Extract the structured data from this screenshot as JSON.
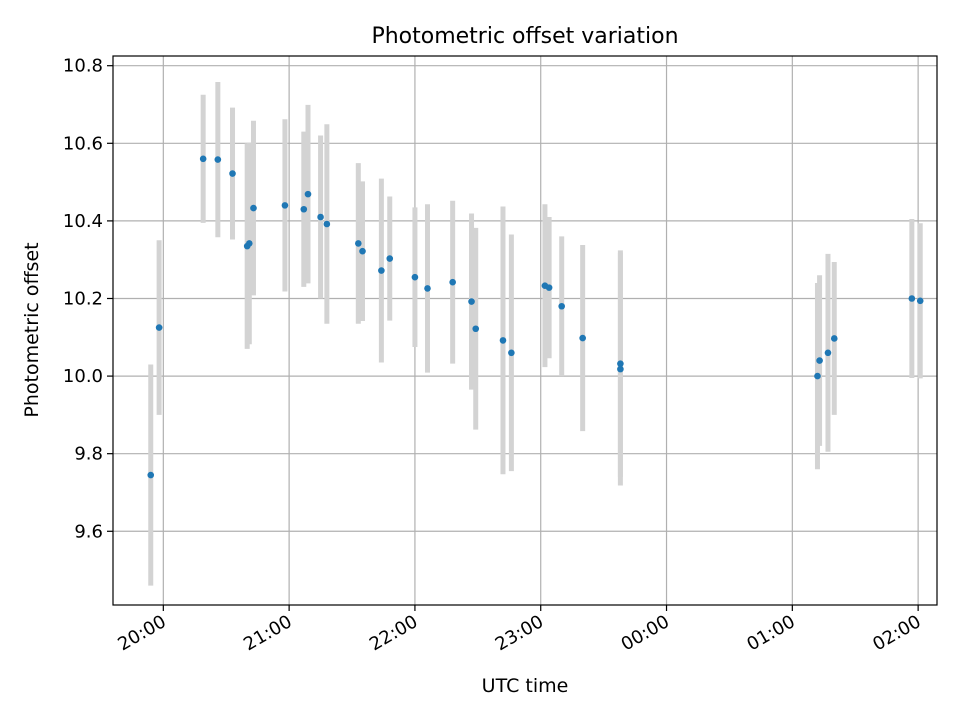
{
  "chart_data": {
    "type": "scatter",
    "title": "Photometric offset variation",
    "xlabel": "UTC time",
    "ylabel": "Photometric offset",
    "x_unit": "hours after 20:00 UTC (axis labels wrap past 24h)",
    "xlim": [
      "19:36",
      "02:09"
    ],
    "ylim": [
      9.41,
      10.825
    ],
    "x_ticks": [
      "20:00",
      "21:00",
      "22:00",
      "23:00",
      "00:00",
      "01:00",
      "02:00"
    ],
    "y_ticks": [
      "9.6",
      "9.8",
      "10.0",
      "10.2",
      "10.4",
      "10.6",
      "10.8"
    ],
    "grid": true,
    "colors": {
      "marker": "#1f77b4",
      "errorbar": "#d3d3d3",
      "grid": "#b0b0b0"
    },
    "series": [
      {
        "points": [
          {
            "x": "19:54",
            "y": 9.745,
            "err": 0.285
          },
          {
            "x": "19:58",
            "y": 10.125,
            "err": 0.225
          },
          {
            "x": "20:19",
            "y": 10.56,
            "err": 0.165
          },
          {
            "x": "20:26",
            "y": 10.558,
            "err": 0.2
          },
          {
            "x": "20:33",
            "y": 10.522,
            "err": 0.17
          },
          {
            "x": "20:40",
            "y": 10.335,
            "err": 0.265
          },
          {
            "x": "20:41",
            "y": 10.342,
            "err": 0.26
          },
          {
            "x": "20:43",
            "y": 10.433,
            "err": 0.225
          },
          {
            "x": "20:58",
            "y": 10.44,
            "err": 0.222
          },
          {
            "x": "21:07",
            "y": 10.43,
            "err": 0.2
          },
          {
            "x": "21:09",
            "y": 10.469,
            "err": 0.23
          },
          {
            "x": "21:15",
            "y": 10.41,
            "err": 0.21
          },
          {
            "x": "21:18",
            "y": 10.392,
            "err": 0.257
          },
          {
            "x": "21:33",
            "y": 10.342,
            "err": 0.207
          },
          {
            "x": "21:35",
            "y": 10.322,
            "err": 0.18
          },
          {
            "x": "21:44",
            "y": 10.272,
            "err": 0.237
          },
          {
            "x": "21:48",
            "y": 10.303,
            "err": 0.16
          },
          {
            "x": "22:00",
            "y": 10.255,
            "err": 0.18
          },
          {
            "x": "22:06",
            "y": 10.226,
            "err": 0.217
          },
          {
            "x": "22:18",
            "y": 10.242,
            "err": 0.21
          },
          {
            "x": "22:27",
            "y": 10.192,
            "err": 0.227
          },
          {
            "x": "22:29",
            "y": 10.122,
            "err": 0.26
          },
          {
            "x": "22:42",
            "y": 10.092,
            "err": 0.345
          },
          {
            "x": "22:46",
            "y": 10.06,
            "err": 0.305
          },
          {
            "x": "23:02",
            "y": 10.233,
            "err": 0.21
          },
          {
            "x": "23:04",
            "y": 10.228,
            "err": 0.182
          },
          {
            "x": "23:10",
            "y": 10.18,
            "err": 0.18
          },
          {
            "x": "23:20",
            "y": 10.098,
            "err": 0.24
          },
          {
            "x": "23:38",
            "y": 10.032,
            "err": 0.292
          },
          {
            "x": "23:38",
            "y": 10.018,
            "err": 0.3
          },
          {
            "x": "01:12",
            "y": 10.0,
            "err": 0.24
          },
          {
            "x": "01:13",
            "y": 10.04,
            "err": 0.22
          },
          {
            "x": "01:17",
            "y": 10.06,
            "err": 0.255
          },
          {
            "x": "01:20",
            "y": 10.097,
            "err": 0.197
          },
          {
            "x": "01:57",
            "y": 10.2,
            "err": 0.205
          },
          {
            "x": "02:01",
            "y": 10.194,
            "err": 0.2
          }
        ]
      }
    ]
  }
}
